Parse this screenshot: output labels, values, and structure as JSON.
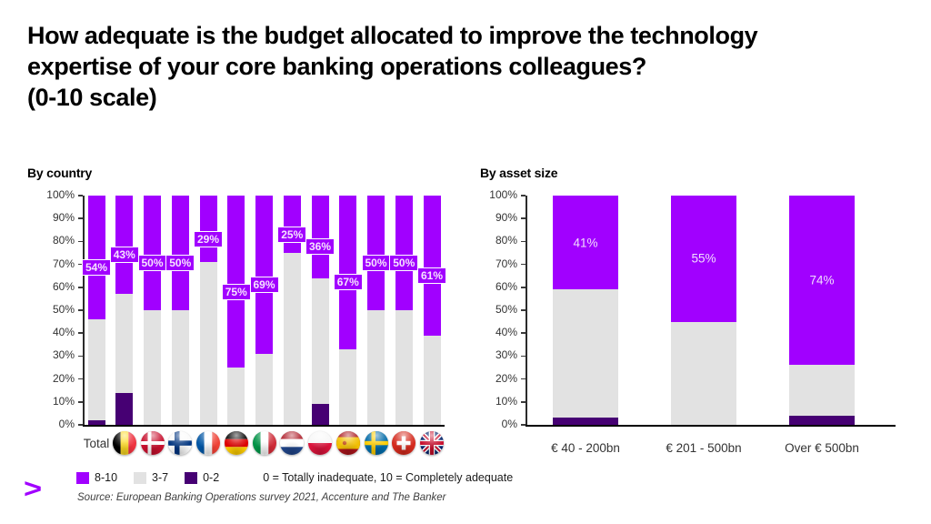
{
  "title_lines": [
    "How adequate is the budget allocated to improve the technology",
    "expertise of your core banking operations colleagues?",
    "(0-10 scale)"
  ],
  "colors": {
    "purple": "#A100FF",
    "gray": "#E2E2E2",
    "dark_purple": "#460073",
    "axis": "#000000"
  },
  "chart_data": [
    {
      "id": "by-country",
      "type": "bar",
      "stacked": true,
      "title": "By country",
      "categories": [
        "Total",
        "Belgium",
        "Denmark",
        "Finland",
        "France",
        "Germany",
        "Italy",
        "Netherlands",
        "Poland",
        "Spain",
        "Sweden",
        "Switzerland",
        "United Kingdom"
      ],
      "category_icons": [
        null,
        "belgium-flag-icon",
        "denmark-flag-icon",
        "finland-flag-icon",
        "france-flag-icon",
        "germany-flag-icon",
        "italy-flag-icon",
        "netherlands-flag-icon",
        "poland-flag-icon",
        "spain-flag-icon",
        "sweden-flag-icon",
        "switzerland-flag-icon",
        "uk-flag-icon"
      ],
      "series": [
        {
          "name": "8-10",
          "color": "#A100FF",
          "values": [
            54,
            43,
            50,
            50,
            29,
            75,
            69,
            25,
            36,
            67,
            50,
            50,
            61
          ],
          "labels": [
            "54%",
            "43%",
            "50%",
            "50%",
            "29%",
            "75%",
            "69%",
            "25%",
            "36%",
            "67%",
            "50%",
            "50%",
            "61%"
          ]
        },
        {
          "name": "3-7",
          "color": "#E2E2E2",
          "values": [
            44,
            43,
            50,
            50,
            71,
            25,
            31,
            75,
            55,
            33,
            50,
            50,
            39
          ]
        },
        {
          "name": "0-2",
          "color": "#460073",
          "values": [
            2,
            14,
            0,
            0,
            0,
            0,
            0,
            0,
            9,
            0,
            0,
            0,
            0
          ]
        }
      ],
      "ylim": [
        0,
        100
      ],
      "yticks": [
        "0%",
        "10%",
        "20%",
        "30%",
        "40%",
        "50%",
        "60%",
        "70%",
        "80%",
        "90%",
        "100%"
      ],
      "grid": false,
      "legend_position": "below"
    },
    {
      "id": "by-asset-size",
      "type": "bar",
      "stacked": true,
      "title": "By asset size",
      "categories": [
        "€ 40 - 200bn",
        "€ 201 - 500bn",
        "Over € 500bn"
      ],
      "category_icons": [
        null,
        null,
        null
      ],
      "series": [
        {
          "name": "8-10",
          "color": "#A100FF",
          "values": [
            41,
            55,
            74
          ],
          "labels": [
            "41%",
            "55%",
            "74%"
          ]
        },
        {
          "name": "3-7",
          "color": "#E2E2E2",
          "values": [
            56,
            45,
            22
          ]
        },
        {
          "name": "0-2",
          "color": "#460073",
          "values": [
            3,
            0,
            4
          ]
        }
      ],
      "ylim": [
        0,
        100
      ],
      "yticks": [
        "0%",
        "10%",
        "20%",
        "30%",
        "40%",
        "50%",
        "60%",
        "70%",
        "80%",
        "90%",
        "100%"
      ],
      "grid": false,
      "legend_position": "below"
    }
  ],
  "legend": {
    "items": [
      {
        "label": "8-10",
        "color": "#A100FF"
      },
      {
        "label": "3-7",
        "color": "#E2E2E2"
      },
      {
        "label": "0-2",
        "color": "#460073"
      }
    ],
    "note": "0 = Totally inadequate, 10 = Completely adequate"
  },
  "source": "Source: European Banking Operations survey 2021, Accenture and The Banker",
  "logo": {
    "glyph": ">"
  }
}
